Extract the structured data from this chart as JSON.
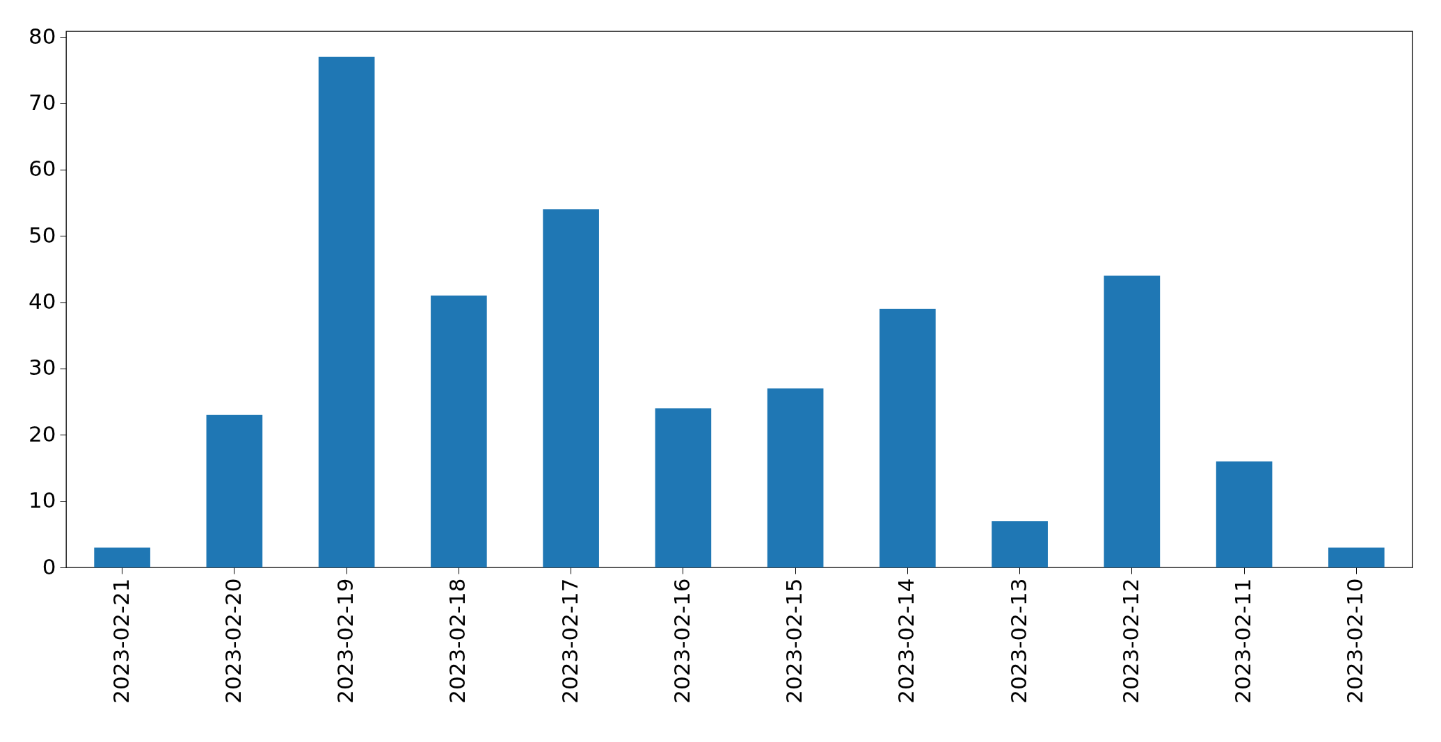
{
  "chart_data": {
    "type": "bar",
    "categories": [
      "2023-02-21",
      "2023-02-20",
      "2023-02-19",
      "2023-02-18",
      "2023-02-17",
      "2023-02-16",
      "2023-02-15",
      "2023-02-14",
      "2023-02-13",
      "2023-02-12",
      "2023-02-11",
      "2023-02-10"
    ],
    "values": [
      3,
      23,
      77,
      41,
      54,
      24,
      27,
      39,
      7,
      44,
      16,
      3
    ],
    "color": "#1f77b4",
    "ylim": [
      0,
      80.85
    ],
    "yticks": [
      0,
      10,
      20,
      30,
      40,
      50,
      60,
      70,
      80
    ],
    "grid": false
  }
}
